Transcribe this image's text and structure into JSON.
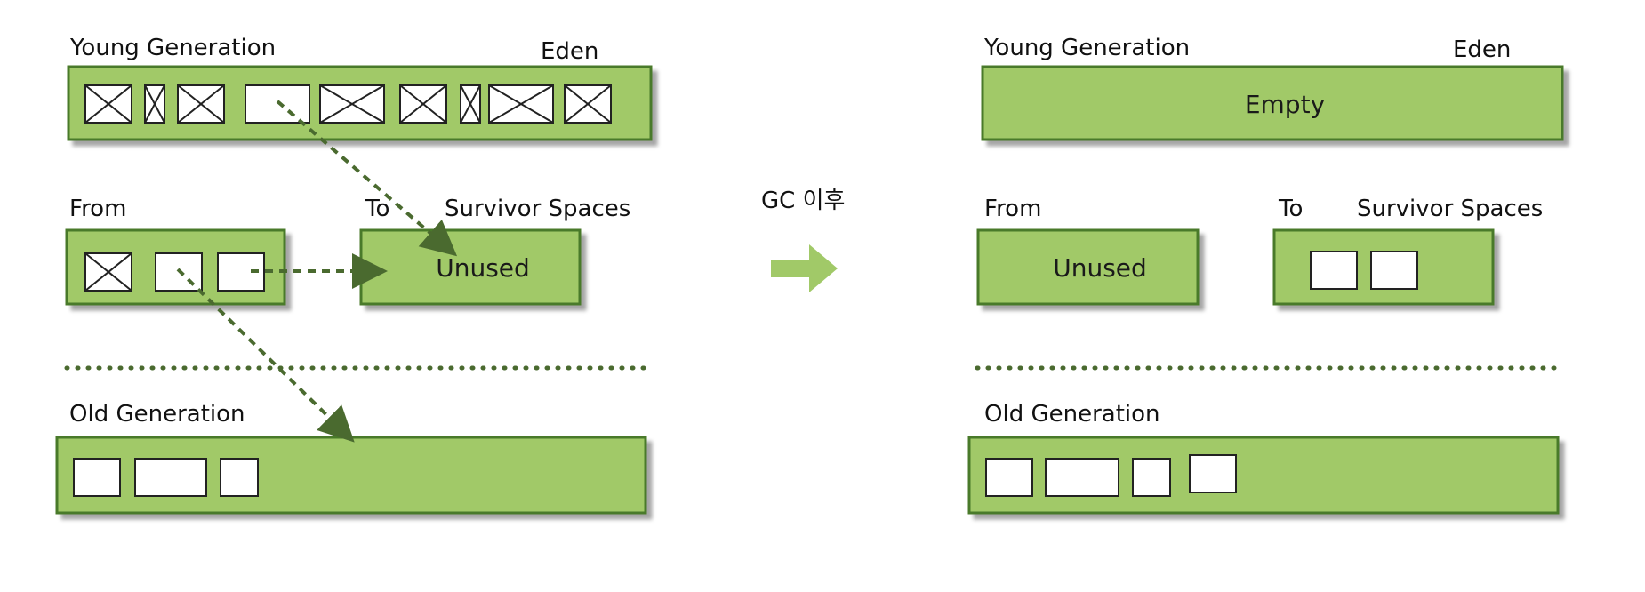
{
  "before": {
    "young_generation": "Young Generation",
    "eden": "Eden",
    "from": "From",
    "to": "To",
    "survivor_spaces": "Survivor Spaces",
    "to_state": "Unused",
    "old_generation": "Old Generation"
  },
  "transition": {
    "label": "GC 이후",
    "arrow_color": "#a1c968"
  },
  "after": {
    "young_generation": "Young Generation",
    "eden": "Eden",
    "eden_state": "Empty",
    "from": "From",
    "from_state": "Unused",
    "to": "To",
    "survivor_spaces": "Survivor Spaces",
    "old_generation": "Old Generation"
  },
  "colors": {
    "region_fill": "#a1c968",
    "region_border": "#4a7a2a",
    "arrow": "#4a6a2f"
  }
}
